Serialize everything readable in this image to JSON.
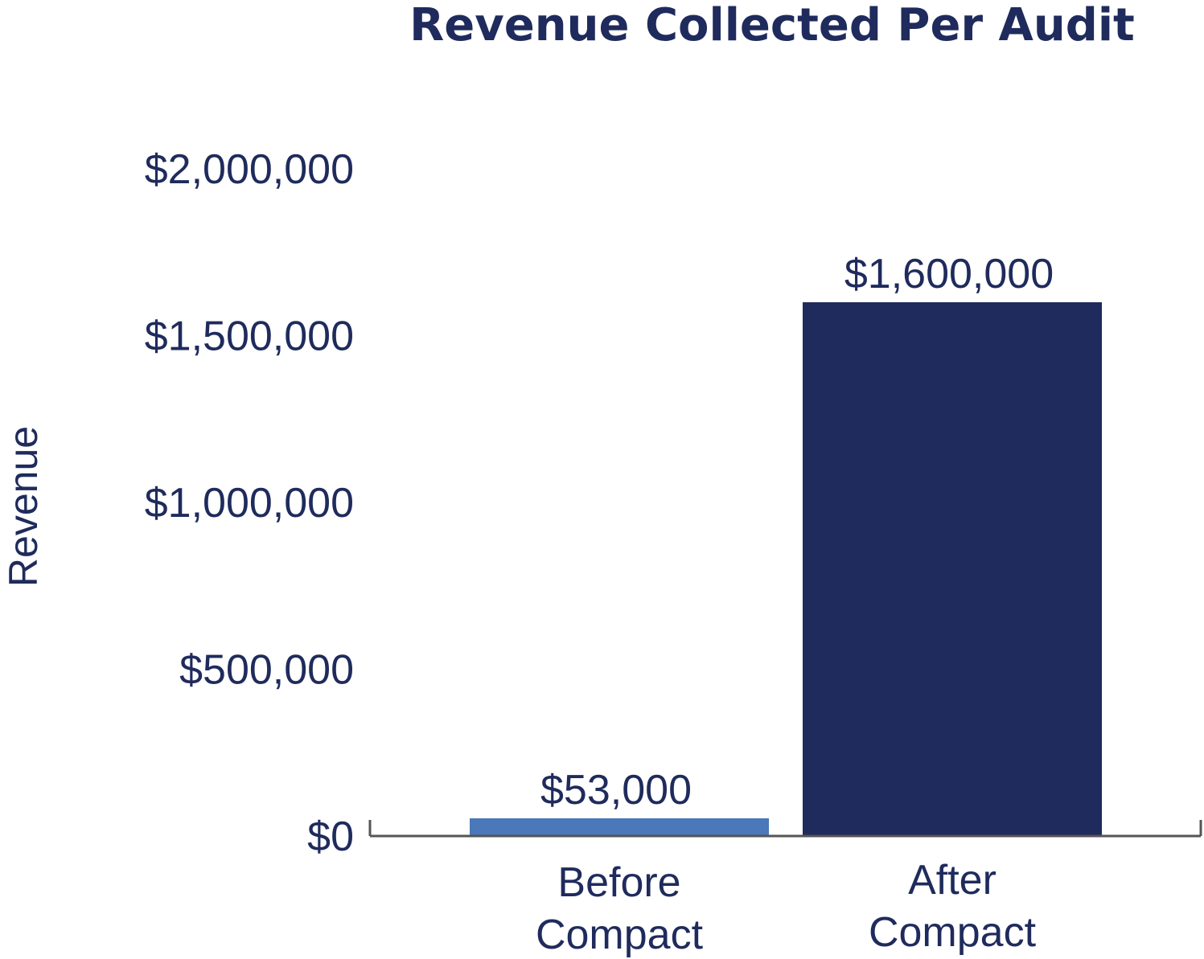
{
  "chart_data": {
    "type": "bar",
    "title": "Revenue Collected Per Audit",
    "xlabel": "",
    "ylabel": "Revenue",
    "categories": [
      [
        "Before",
        "Compact"
      ],
      [
        "After",
        "Compact"
      ]
    ],
    "values": [
      53000,
      1600000
    ],
    "value_labels": [
      "$53,000",
      "$1,600,000"
    ],
    "bar_colors": [
      "#4a78b8",
      "#1f2b5c"
    ],
    "ylim": [
      0,
      2000000
    ],
    "yticks": [
      0,
      500000,
      1000000,
      1500000,
      2000000
    ],
    "ytick_labels": [
      "$0",
      "$500,000",
      "$1,000,000",
      "$1,500,000",
      "$2,000,000"
    ],
    "grid": false,
    "legend": "none",
    "text_color": "#1f2b5c",
    "axis_color": "#555555"
  }
}
